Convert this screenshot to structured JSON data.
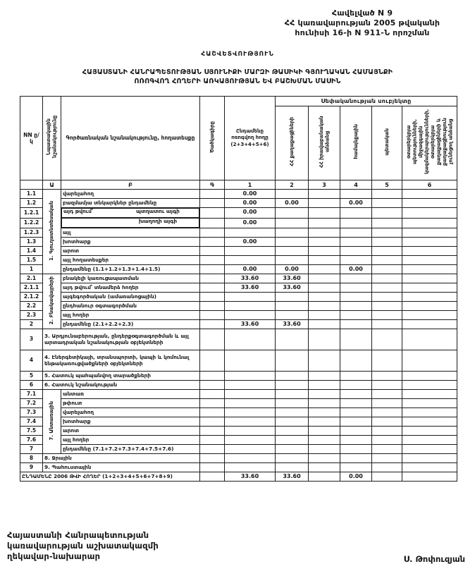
{
  "annex": {
    "line1": "Հավելված N  9",
    "line2": "ՀՀ կառավարության 2005 թվականի",
    "line3": "հունիսի 16-ի N 911-Ն որոշման"
  },
  "title": {
    "report": "ՀԱՇՎԵՏՎՈՒԹՅՈՒՆ",
    "line1": "ՀԱՅԱՍՏԱՆԻ ՀԱՆՐԱՊԵՏՈՒԹՅԱՆ ՍՅՈՒՆԻՔԻ ՄԱՐԶԻ ԹԱՍԻԿԻ ԳՅՈՒՂԱԿԱՆ ՀԱՄԱՅՆՔԻ",
    "line2": "ՈՌՈԳՎՈՂ ՀՈՂԵՐԻ ԱՌԿԱՅՈՒԹՅԱՆ ԵՎ ԲԱՇԽՄԱՆ ՄԱՍԻՆ"
  },
  "table": {
    "headers": {
      "num": "NN ը/կ",
      "purpose": "Նպատակային նշանակությունը",
      "functional": "Գործառնական նշանակությունը, հողատեսքը",
      "code": "Ծածկագիրը",
      "total_irrigated": "Ընդամենը ոռոգվող հողը (2+3+4+5+6)",
      "ownership_group": "Սեփականության սուբյեկտը",
      "own_citizens": "ՀՀ քաղաքացիների",
      "own_legal": "ՀՀ իրավաբանական անձանց",
      "own_community": "համայնքային",
      "own_state": "պետական",
      "own_foreign": "օտարերկրյա պետությունների, միջազգային կազմակերպությունների, օտարերկրյա քաղաքացիների և քաղաքացիություն չունեցող անձանց"
    },
    "numbering": [
      "",
      "Ա",
      "Բ",
      "Գ",
      "1",
      "2",
      "3",
      "4",
      "5",
      "6"
    ],
    "rows": [
      {
        "num": "1.1",
        "sec": {
          "label": "1. Գյուղատնտեսական",
          "rows": 9
        },
        "label": "վարելահող",
        "v": [
          "",
          "0.00",
          "",
          "",
          "",
          "",
          ""
        ]
      },
      {
        "num": "1.2",
        "label": "բազմամյա տնկարկներ ընդամենը",
        "v": [
          "",
          "0.00",
          "0.00",
          "",
          "0.00",
          "",
          ""
        ]
      },
      {
        "num": "1.2.1",
        "prefix": "այդ թվում՝",
        "label": "պտղատու այգի",
        "v": [
          "",
          "0.00",
          "",
          "",
          "",
          "",
          ""
        ]
      },
      {
        "num": "1.2.2",
        "prefix": "",
        "label": "խաղողի այգի",
        "v": [
          "",
          "0.00",
          "",
          "",
          "",
          "",
          ""
        ]
      },
      {
        "num": "1.2.3",
        "label": "այլ",
        "v": [
          "",
          "",
          "",
          "",
          "",
          "",
          ""
        ]
      },
      {
        "num": "1.3",
        "label": "խոտհարք",
        "v": [
          "",
          "0.00",
          "",
          "",
          "",
          "",
          ""
        ]
      },
      {
        "num": "1.4",
        "label": "արոտ",
        "v": [
          "",
          "",
          "",
          "",
          "",
          "",
          ""
        ]
      },
      {
        "num": "1.5",
        "label": "այլ հողատեսքեր",
        "v": [
          "",
          "",
          "",
          "",
          "",
          "",
          ""
        ]
      },
      {
        "num": "1",
        "label": "ընդամենը (1.1+1.2+1.3+1.4+1.5)",
        "v": [
          "",
          "0.00",
          "0.00",
          "",
          "0.00",
          "",
          ""
        ]
      },
      {
        "num": "2.1",
        "sec": {
          "label": "2. Բնակավայրերի",
          "rows": 6
        },
        "label": "բնակելի կառուցապատման",
        "v": [
          "",
          "33.60",
          "33.60",
          "",
          "",
          "",
          ""
        ]
      },
      {
        "num": "2.1.1",
        "label": "այդ թվում՝ տնամերձ հողեր",
        "v": [
          "",
          "33.60",
          "33.60",
          "",
          "",
          "",
          ""
        ]
      },
      {
        "num": "2.1.2",
        "label": "այգեգործական (ամառանոցային)",
        "v": [
          "",
          "",
          "",
          "",
          "",
          "",
          ""
        ]
      },
      {
        "num": "2.2",
        "label": "ընդհանուր օգտագործման",
        "v": [
          "",
          "",
          "",
          "",
          "",
          "",
          ""
        ]
      },
      {
        "num": "2.3",
        "label": "այլ հողեր",
        "v": [
          "",
          "",
          "",
          "",
          "",
          "",
          ""
        ]
      },
      {
        "num": "2",
        "label": "ընդամենը (2.1+2.2+2.3)",
        "v": [
          "",
          "33.60",
          "33.60",
          "",
          "",
          "",
          ""
        ]
      },
      {
        "num": "3",
        "span": "sec",
        "cls": "tall",
        "label": "3. Արդյունաբերության, ընդերքօգտագործման և այլ արտադրական նշանակության օբյեկտների",
        "v": [
          "",
          "",
          "",
          "",
          "",
          "",
          ""
        ]
      },
      {
        "num": "4",
        "span": "sec",
        "cls": "tall",
        "label": "4. Էներգետիկայի, տրանսպորտի, կապի և կոմունալ ենթակառուցվածքների օբյեկտների",
        "v": [
          "",
          "",
          "",
          "",
          "",
          "",
          ""
        ]
      },
      {
        "num": "5",
        "span": "sec",
        "label": "5. Հատուկ պահպանվող տարածքների",
        "v": [
          "",
          "",
          "",
          "",
          "",
          "",
          ""
        ]
      },
      {
        "num": "6",
        "span": "sec",
        "label": "6. Հատուկ նշանակության",
        "v": [
          "",
          "",
          "",
          "",
          "",
          "",
          ""
        ]
      },
      {
        "num": "7.1",
        "sec": {
          "label": "7. Անտառային",
          "rows": 7
        },
        "label": "անտառ",
        "v": [
          "",
          "",
          "",
          "",
          "",
          "",
          ""
        ]
      },
      {
        "num": "7.2",
        "label": "թփուտ",
        "v": [
          "",
          "",
          "",
          "",
          "",
          "",
          ""
        ]
      },
      {
        "num": "7.3",
        "label": "վարելահող",
        "v": [
          "",
          "",
          "",
          "",
          "",
          "",
          ""
        ]
      },
      {
        "num": "7.4",
        "label": "խոտհարք",
        "v": [
          "",
          "",
          "",
          "",
          "",
          "",
          ""
        ]
      },
      {
        "num": "7.5",
        "label": "արոտ",
        "v": [
          "",
          "",
          "",
          "",
          "",
          "",
          ""
        ]
      },
      {
        "num": "7.6",
        "label": "այլ հողեր",
        "v": [
          "",
          "",
          "",
          "",
          "",
          "",
          ""
        ]
      },
      {
        "num": "7",
        "label": "ընդամենը (7.1+7.2+7.3+7.4+7.5+7.6)",
        "v": [
          "",
          "",
          "",
          "",
          "",
          "",
          ""
        ]
      },
      {
        "num": "8",
        "span": "sec",
        "label": "8. Ջրային",
        "v": [
          "",
          "",
          "",
          "",
          "",
          "",
          ""
        ]
      },
      {
        "num": "9",
        "span": "sec",
        "label": "9. Պահուստային",
        "v": [
          "",
          "",
          "",
          "",
          "",
          "",
          ""
        ]
      },
      {
        "num": "",
        "span": "all",
        "cls": "total-row",
        "label": "ԸՆԴԱՄԵՆԸ 2006 ԹՎԻ ՀՈՂԵՐ (1+2+3+4+5+6+7+8+9)",
        "v": [
          "",
          "33.60",
          "33.60",
          "",
          "0.00",
          "",
          ""
        ]
      }
    ]
  },
  "footer": {
    "line1": "Հայաստանի Հանրապետության",
    "line2": "կառավարության աշխատակազմի",
    "line3": "ղեկավար-նախարար",
    "signature": "Ս. Թոփուզյան"
  }
}
